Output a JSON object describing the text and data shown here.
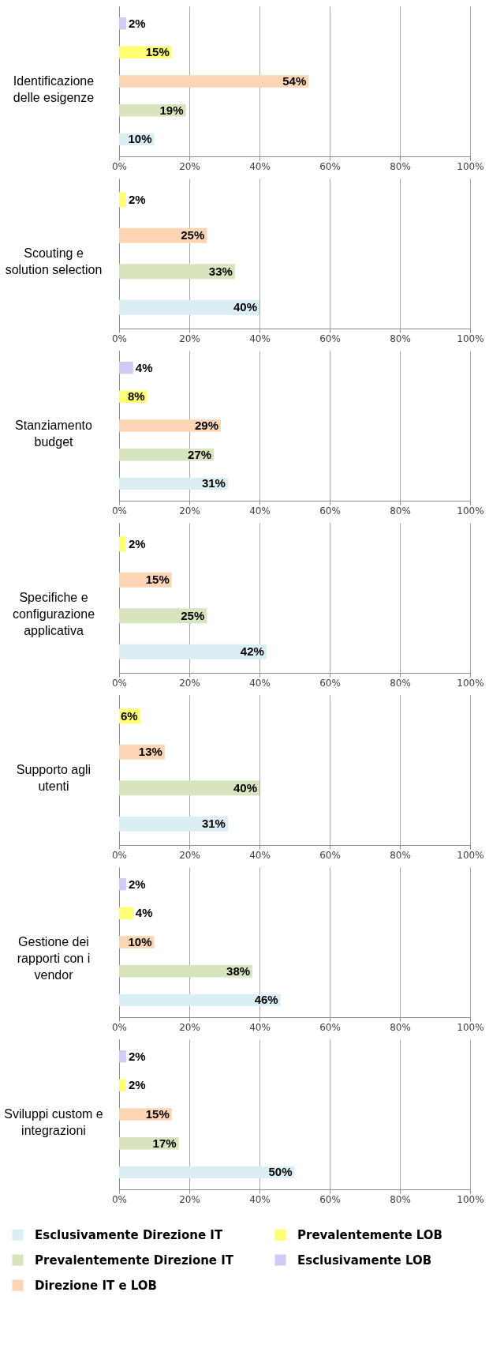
{
  "chart_data": [
    {
      "type": "bar",
      "orientation": "horizontal",
      "title": "Identificazione delle esigenze",
      "categories": [
        null
      ],
      "series": [
        {
          "color": "#dbeef3",
          "values": [
            10
          ],
          "value_labels": [
            "10%"
          ]
        },
        {
          "color": "#d7e4bd",
          "values": [
            19
          ],
          "value_labels": [
            "19%"
          ]
        },
        {
          "color": "#fcd5b5",
          "values": [
            54
          ],
          "value_labels": [
            "54%"
          ]
        },
        {
          "color": "#ffff73",
          "values": [
            15
          ],
          "value_labels": [
            "15%"
          ]
        },
        {
          "color": "#ccccf5",
          "values": [
            2
          ],
          "value_labels": [
            "2%"
          ]
        }
      ],
      "xlim": [
        0,
        100
      ],
      "xticks": [
        {
          "value": 0,
          "label": "0%"
        },
        {
          "value": 20,
          "label": "20%"
        },
        {
          "value": 40,
          "label": "40%"
        },
        {
          "value": 60,
          "label": "60%"
        },
        {
          "value": 80,
          "label": "80%"
        },
        {
          "value": 100,
          "label": "100%"
        }
      ],
      "grid": "x",
      "legend": false
    },
    {
      "type": "bar",
      "orientation": "horizontal",
      "title": "Scouting e solution selection",
      "categories": [
        null
      ],
      "series": [
        {
          "color": "#dbeef3",
          "values": [
            40
          ],
          "value_labels": [
            "40%"
          ]
        },
        {
          "color": "#d7e4bd",
          "values": [
            33
          ],
          "value_labels": [
            "33%"
          ]
        },
        {
          "color": "#fcd5b5",
          "values": [
            25
          ],
          "value_labels": [
            "25%"
          ]
        },
        {
          "color": "#ffff73",
          "values": [
            2
          ],
          "value_labels": [
            "2%"
          ]
        }
      ],
      "xlim": [
        0,
        100
      ],
      "xticks": [
        {
          "value": 0,
          "label": "0%"
        },
        {
          "value": 20,
          "label": "20%"
        },
        {
          "value": 40,
          "label": "40%"
        },
        {
          "value": 60,
          "label": "60%"
        },
        {
          "value": 80,
          "label": "80%"
        },
        {
          "value": 100,
          "label": "100%"
        }
      ],
      "grid": "x",
      "legend": false
    },
    {
      "type": "bar",
      "orientation": "horizontal",
      "title": "Stanziamento budget",
      "categories": [
        null
      ],
      "series": [
        {
          "color": "#dbeef3",
          "values": [
            31
          ],
          "value_labels": [
            "31%"
          ]
        },
        {
          "color": "#d7e4bd",
          "values": [
            27
          ],
          "value_labels": [
            "27%"
          ]
        },
        {
          "color": "#fcd5b5",
          "values": [
            29
          ],
          "value_labels": [
            "29%"
          ]
        },
        {
          "color": "#ffff73",
          "values": [
            8
          ],
          "value_labels": [
            "8%"
          ]
        },
        {
          "color": "#ccccf5",
          "values": [
            4
          ],
          "value_labels": [
            "4%"
          ]
        }
      ],
      "xlim": [
        0,
        100
      ],
      "xticks": [
        {
          "value": 0,
          "label": "0%"
        },
        {
          "value": 20,
          "label": "20%"
        },
        {
          "value": 40,
          "label": "40%"
        },
        {
          "value": 60,
          "label": "60%"
        },
        {
          "value": 80,
          "label": "80%"
        },
        {
          "value": 100,
          "label": "100%"
        }
      ],
      "grid": "x",
      "legend": false
    },
    {
      "type": "bar",
      "orientation": "horizontal",
      "title": "Specifiche e configurazione applicativa",
      "categories": [
        null
      ],
      "series": [
        {
          "color": "#dbeef3",
          "values": [
            42
          ],
          "value_labels": [
            "42%"
          ]
        },
        {
          "color": "#d7e4bd",
          "values": [
            25
          ],
          "value_labels": [
            "25%"
          ]
        },
        {
          "color": "#fcd5b5",
          "values": [
            15
          ],
          "value_labels": [
            "15%"
          ]
        },
        {
          "color": "#ffff73",
          "values": [
            2
          ],
          "value_labels": [
            "2%"
          ]
        }
      ],
      "xlim": [
        0,
        100
      ],
      "xticks": [
        {
          "value": 0,
          "label": "0%"
        },
        {
          "value": 20,
          "label": "20%"
        },
        {
          "value": 40,
          "label": "40%"
        },
        {
          "value": 60,
          "label": "60%"
        },
        {
          "value": 80,
          "label": "80%"
        },
        {
          "value": 100,
          "label": "100%"
        }
      ],
      "grid": "x",
      "legend": false
    },
    {
      "type": "bar",
      "orientation": "horizontal",
      "title": "Supporto agli utenti",
      "categories": [
        null
      ],
      "series": [
        {
          "color": "#dbeef3",
          "values": [
            31
          ],
          "value_labels": [
            "31%"
          ]
        },
        {
          "color": "#d7e4bd",
          "values": [
            40
          ],
          "value_labels": [
            "40%"
          ]
        },
        {
          "color": "#fcd5b5",
          "values": [
            13
          ],
          "value_labels": [
            "13%"
          ]
        },
        {
          "color": "#ffff73",
          "values": [
            6
          ],
          "value_labels": [
            "6%"
          ]
        }
      ],
      "xlim": [
        0,
        100
      ],
      "xticks": [
        {
          "value": 0,
          "label": "0%"
        },
        {
          "value": 20,
          "label": "20%"
        },
        {
          "value": 40,
          "label": "40%"
        },
        {
          "value": 60,
          "label": "60%"
        },
        {
          "value": 80,
          "label": "80%"
        },
        {
          "value": 100,
          "label": "100%"
        }
      ],
      "grid": "x",
      "legend": false
    },
    {
      "type": "bar",
      "orientation": "horizontal",
      "title": "Gestione dei rapporti con i vendor",
      "categories": [
        null
      ],
      "series": [
        {
          "color": "#dbeef3",
          "values": [
            46
          ],
          "value_labels": [
            "46%"
          ]
        },
        {
          "color": "#d7e4bd",
          "values": [
            38
          ],
          "value_labels": [
            "38%"
          ]
        },
        {
          "color": "#fcd5b5",
          "values": [
            10
          ],
          "value_labels": [
            "10%"
          ]
        },
        {
          "color": "#ffff73",
          "values": [
            4
          ],
          "value_labels": [
            "4%"
          ]
        },
        {
          "color": "#ccccf5",
          "values": [
            2
          ],
          "value_labels": [
            "2%"
          ]
        }
      ],
      "xlim": [
        0,
        100
      ],
      "xticks": [
        {
          "value": 0,
          "label": "0%"
        },
        {
          "value": 20,
          "label": "20%"
        },
        {
          "value": 40,
          "label": "40%"
        },
        {
          "value": 60,
          "label": "60%"
        },
        {
          "value": 80,
          "label": "80%"
        },
        {
          "value": 100,
          "label": "100%"
        }
      ],
      "grid": "x",
      "legend": false
    },
    {
      "type": "bar",
      "orientation": "horizontal",
      "title": "Sviluppi custom e integrazioni",
      "categories": [
        null
      ],
      "series": [
        {
          "name": "Esclusivamente Direzione IT",
          "color": "#dbeef3",
          "values": [
            50
          ],
          "value_labels": [
            "50%"
          ]
        },
        {
          "name": "Prevalentemente Direzione IT",
          "color": "#d7e4bd",
          "values": [
            17
          ],
          "value_labels": [
            "17%"
          ]
        },
        {
          "name": "Direzione IT e LOB",
          "color": "#fcd5b5",
          "values": [
            15
          ],
          "value_labels": [
            "15%"
          ]
        },
        {
          "name": "Prevalentemente LOB",
          "color": "#ffff73",
          "values": [
            2
          ],
          "value_labels": [
            "2%"
          ]
        },
        {
          "name": "Esclusivamente LOB",
          "color": "#ccccf5",
          "values": [
            2
          ],
          "value_labels": [
            "2%"
          ]
        }
      ],
      "xlim": [
        0,
        100
      ],
      "xticks": [
        {
          "value": 0,
          "label": "0%"
        },
        {
          "value": 20,
          "label": "20%"
        },
        {
          "value": 40,
          "label": "40%"
        },
        {
          "value": 60,
          "label": "60%"
        },
        {
          "value": 80,
          "label": "80%"
        },
        {
          "value": 100,
          "label": "100%"
        }
      ],
      "grid": "x",
      "legend": "bottom"
    }
  ]
}
